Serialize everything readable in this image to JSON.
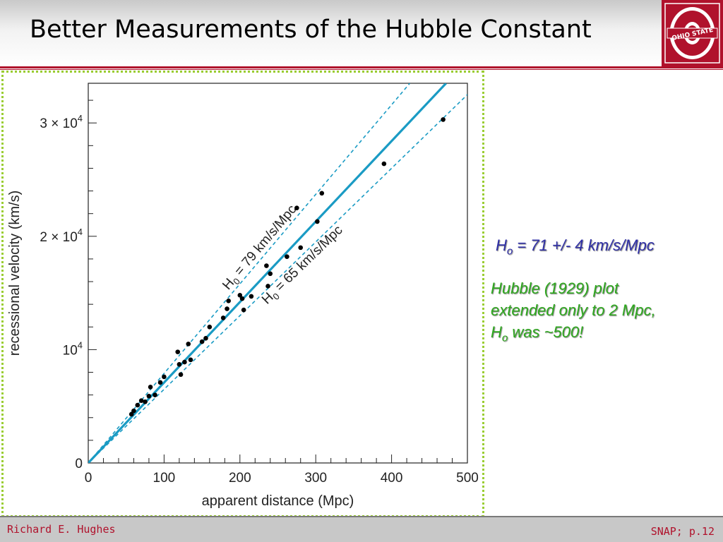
{
  "slide": {
    "title": "Better Measurements of the Hubble Constant",
    "logo_text": "OHIO STATE",
    "h0_prefix": "H",
    "h0_sub": "o",
    "h0_suffix": " = 71 +/- 4 km/s/Mpc",
    "note_line1": "Hubble (1929) plot",
    "note_line2": "extended only to 2 Mpc,",
    "note_line3_prefix": "H",
    "note_line3_sub": "o",
    "note_line3_suffix": " was ~500!",
    "footer_left": "Richard E. Hughes",
    "footer_right": "SNAP; p.12",
    "colors": {
      "accent": "#b0122c",
      "h0_text": "#2f2fa6",
      "note_text": "#2ea81e",
      "fit_line": "#1a9bc4",
      "frame": "#9acd32"
    }
  },
  "chart_data": {
    "type": "scatter",
    "xlabel": "apparent distance (Mpc)",
    "ylabel": "recessional velocity (km/s)",
    "xlim": [
      0,
      500
    ],
    "ylim": [
      0,
      33500
    ],
    "x_ticks": [
      0,
      100,
      200,
      300,
      400,
      500
    ],
    "x_tick_labels": [
      "0",
      "100",
      "200",
      "300",
      "400",
      "500"
    ],
    "y_ticks": [
      0,
      10000,
      20000,
      30000
    ],
    "y_tick_labels": [
      {
        "base": "0",
        "exp": ""
      },
      {
        "base": "10",
        "exp": "4"
      },
      {
        "base": "2 × 10",
        "exp": "4"
      },
      {
        "base": "3 × 10",
        "exp": "4"
      }
    ],
    "lines": [
      {
        "slope": 71,
        "style": "solid",
        "label": ""
      },
      {
        "slope": 79,
        "style": "dashed",
        "label_prefix": "H",
        "label_sub": "0",
        "label_suffix": " = 79 km/s/Mpc"
      },
      {
        "slope": 65,
        "style": "dashed",
        "label_prefix": "H",
        "label_sub": "0",
        "label_suffix": " = 65 km/s/Mpc"
      }
    ],
    "points": [
      [
        57,
        4300
      ],
      [
        60,
        4600
      ],
      [
        65,
        5100
      ],
      [
        70,
        5500
      ],
      [
        75,
        5400
      ],
      [
        80,
        5900
      ],
      [
        82,
        6700
      ],
      [
        88,
        6000
      ],
      [
        95,
        7100
      ],
      [
        100,
        7600
      ],
      [
        118,
        9800
      ],
      [
        120,
        8700
      ],
      [
        122,
        7800
      ],
      [
        127,
        8900
      ],
      [
        132,
        10500
      ],
      [
        135,
        9100
      ],
      [
        150,
        10700
      ],
      [
        155,
        11000
      ],
      [
        160,
        12000
      ],
      [
        178,
        12800
      ],
      [
        183,
        13600
      ],
      [
        185,
        14300
      ],
      [
        200,
        14800
      ],
      [
        203,
        14500
      ],
      [
        205,
        13500
      ],
      [
        215,
        14700
      ],
      [
        235,
        17400
      ],
      [
        237,
        15600
      ],
      [
        240,
        16700
      ],
      [
        262,
        18200
      ],
      [
        275,
        22500
      ],
      [
        280,
        19000
      ],
      [
        302,
        21300
      ],
      [
        308,
        23800
      ],
      [
        390,
        26400
      ],
      [
        468,
        30300
      ]
    ]
  }
}
